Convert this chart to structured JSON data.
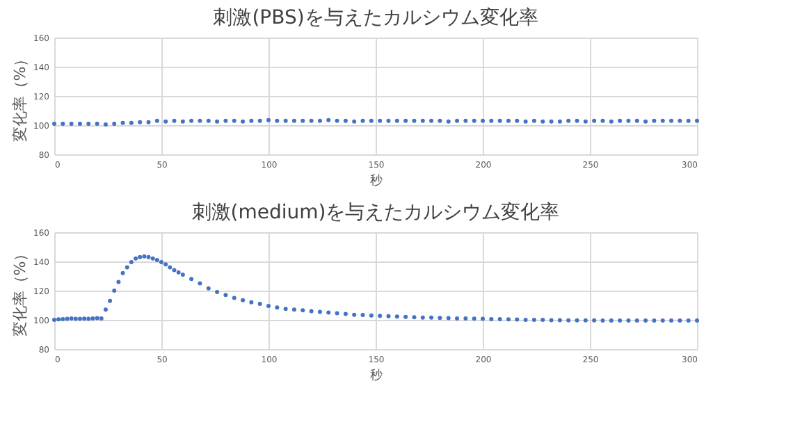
{
  "chart_data": [
    {
      "type": "scatter",
      "title": "刺激(PBS)を与えたカルシウム変化率",
      "xlabel": "秒",
      "ylabel": "変化率（%）",
      "xlim": [
        0,
        300
      ],
      "ylim": [
        80,
        160
      ],
      "xticks": [
        0,
        50,
        100,
        150,
        200,
        250,
        300
      ],
      "yticks": [
        80,
        100,
        120,
        140,
        160
      ],
      "grid": true,
      "marker": "circle",
      "series": [
        {
          "color": "#4472c4",
          "x": [
            0,
            4,
            8,
            12,
            16,
            20,
            24,
            28,
            32,
            36,
            40,
            44,
            48,
            52,
            56,
            60,
            64,
            68,
            72,
            76,
            80,
            84,
            88,
            92,
            96,
            100,
            104,
            108,
            112,
            116,
            120,
            124,
            128,
            132,
            136,
            140,
            144,
            148,
            152,
            156,
            160,
            164,
            168,
            172,
            176,
            180,
            184,
            188,
            192,
            196,
            200,
            204,
            208,
            212,
            216,
            220,
            224,
            228,
            232,
            236,
            240,
            244,
            248,
            252,
            256,
            260,
            264,
            268,
            272,
            276,
            280,
            284,
            288,
            292,
            296,
            300
          ],
          "values": [
            101,
            101,
            101,
            101,
            101,
            101,
            100.5,
            101,
            101.5,
            101.5,
            102,
            102,
            103,
            102.5,
            103,
            102.5,
            103,
            103,
            103,
            102.5,
            103,
            103,
            102.5,
            103,
            103,
            103.5,
            103,
            103,
            103,
            103,
            103,
            103,
            103.5,
            103,
            103,
            102.5,
            103,
            103,
            103,
            103,
            103,
            103,
            103,
            103,
            103,
            103,
            102.5,
            103,
            103,
            103,
            103,
            103,
            103,
            103,
            103,
            102.5,
            103,
            102.5,
            102.5,
            102.5,
            103,
            103,
            102.5,
            103,
            103,
            102.5,
            103,
            103,
            103,
            102.5,
            103,
            103,
            103,
            103,
            103,
            103
          ]
        }
      ]
    },
    {
      "type": "scatter",
      "title": "刺激(medium)を与えたカルシウム変化率",
      "xlabel": "秒",
      "ylabel": "変化率（%）",
      "xlim": [
        0,
        300
      ],
      "ylim": [
        80,
        160
      ],
      "xticks": [
        0,
        50,
        100,
        150,
        200,
        250,
        300
      ],
      "yticks": [
        80,
        100,
        120,
        140,
        160
      ],
      "grid": true,
      "marker": "circle",
      "series": [
        {
          "color": "#4472c4",
          "x": [
            0,
            2,
            4,
            6,
            8,
            10,
            12,
            14,
            16,
            18,
            20,
            22,
            24,
            26,
            28,
            30,
            32,
            34,
            36,
            38,
            40,
            42,
            44,
            46,
            48,
            50,
            52,
            54,
            56,
            58,
            60,
            64,
            68,
            72,
            76,
            80,
            84,
            88,
            92,
            96,
            100,
            104,
            108,
            112,
            116,
            120,
            124,
            128,
            132,
            136,
            140,
            144,
            148,
            152,
            156,
            160,
            164,
            168,
            172,
            176,
            180,
            184,
            188,
            192,
            196,
            200,
            204,
            208,
            212,
            216,
            220,
            224,
            228,
            232,
            236,
            240,
            244,
            248,
            252,
            256,
            260,
            264,
            268,
            272,
            276,
            280,
            284,
            288,
            292,
            296,
            300
          ],
          "values": [
            100,
            100.3,
            100.5,
            100.7,
            101,
            100.7,
            100.7,
            100.8,
            100.7,
            101,
            101.2,
            101,
            107,
            113,
            120,
            126,
            132,
            136,
            139.5,
            142,
            143,
            143.5,
            143,
            142,
            141,
            139.5,
            138,
            136,
            134,
            132.5,
            131,
            128,
            125,
            121.5,
            119,
            117,
            115,
            113.5,
            112,
            111,
            109.5,
            108.5,
            107.5,
            107,
            106.5,
            106,
            105.5,
            105,
            104.5,
            104,
            103.5,
            103.3,
            103,
            102.7,
            102.5,
            102.3,
            102,
            101.8,
            101.6,
            101.5,
            101.3,
            101.2,
            101,
            101,
            100.8,
            100.7,
            100.5,
            100.5,
            100.3,
            100.2,
            100,
            100,
            100,
            99.8,
            99.8,
            99.7,
            99.7,
            99.6,
            99.6,
            99.5,
            99.5,
            99.5,
            99.5,
            99.5,
            99.5,
            99.5,
            99.5,
            99.5,
            99.5,
            99.5,
            99.5
          ]
        }
      ]
    }
  ]
}
